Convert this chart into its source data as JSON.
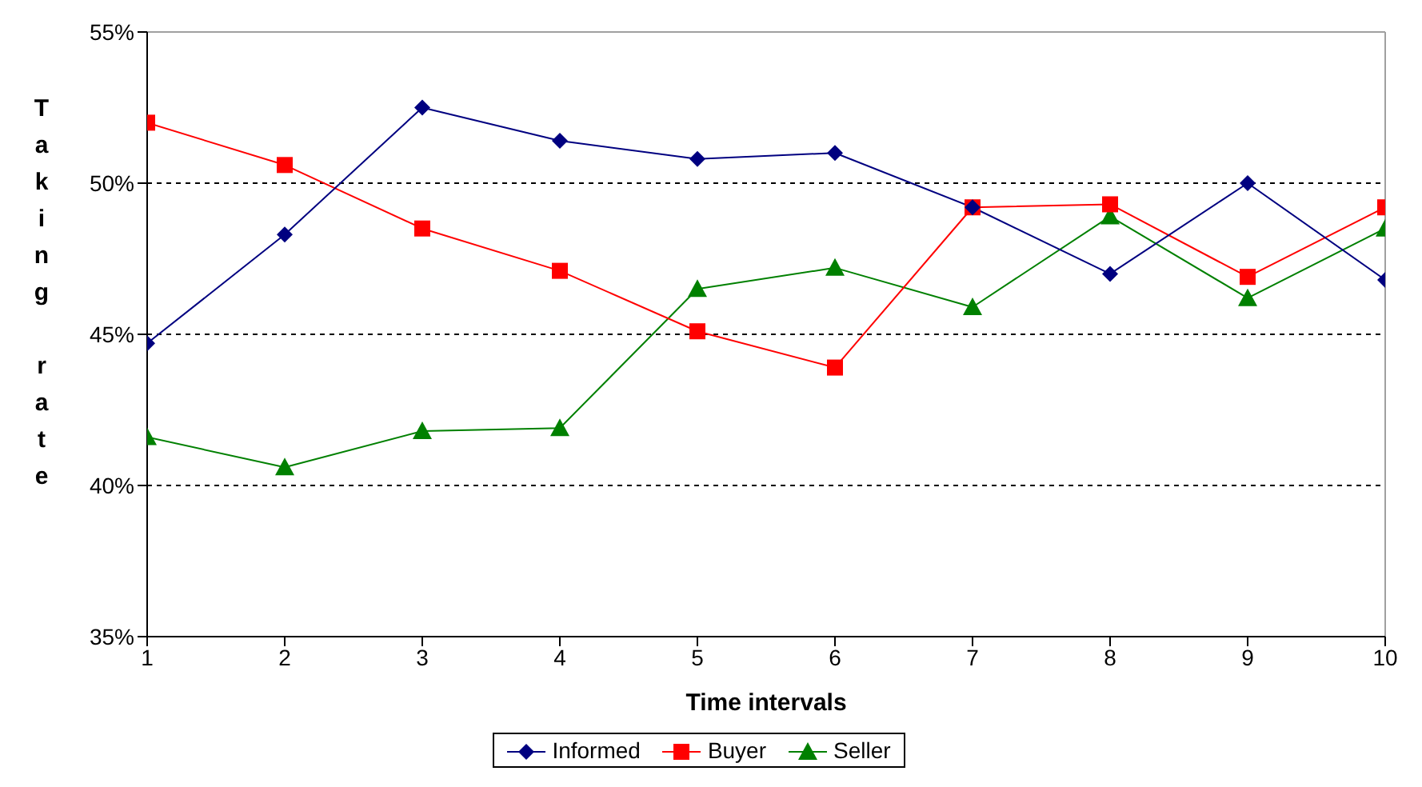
{
  "chart_data": {
    "type": "line",
    "xlabel": "Time intervals",
    "ylabel": "Taking rate",
    "x": [
      1,
      2,
      3,
      4,
      5,
      6,
      7,
      8,
      9,
      10
    ],
    "xlim": [
      1,
      10
    ],
    "xticks": [
      1,
      2,
      3,
      4,
      5,
      6,
      7,
      8,
      9,
      10
    ],
    "ylim": [
      35,
      55
    ],
    "yticks": [
      {
        "value": 35,
        "label": "35%"
      },
      {
        "value": 40,
        "label": "40%"
      },
      {
        "value": 45,
        "label": "45%"
      },
      {
        "value": 50,
        "label": "50%"
      },
      {
        "value": 55,
        "label": "55%"
      }
    ],
    "grid": "y",
    "legend": "bottom",
    "series": [
      {
        "name": "Informed",
        "color": "#000080",
        "marker": "diamond",
        "values": [
          44.7,
          48.3,
          52.5,
          51.4,
          50.8,
          51.0,
          49.2,
          47.0,
          50.0,
          46.8
        ]
      },
      {
        "name": "Buyer",
        "color": "#ff0000",
        "marker": "square",
        "values": [
          52.0,
          50.6,
          48.5,
          47.1,
          45.1,
          43.9,
          49.2,
          49.3,
          46.9,
          49.2
        ]
      },
      {
        "name": "Seller",
        "color": "#008000",
        "marker": "triangle",
        "values": [
          41.6,
          40.6,
          41.8,
          41.9,
          46.5,
          47.2,
          45.9,
          48.9,
          46.2,
          48.5
        ]
      }
    ]
  }
}
